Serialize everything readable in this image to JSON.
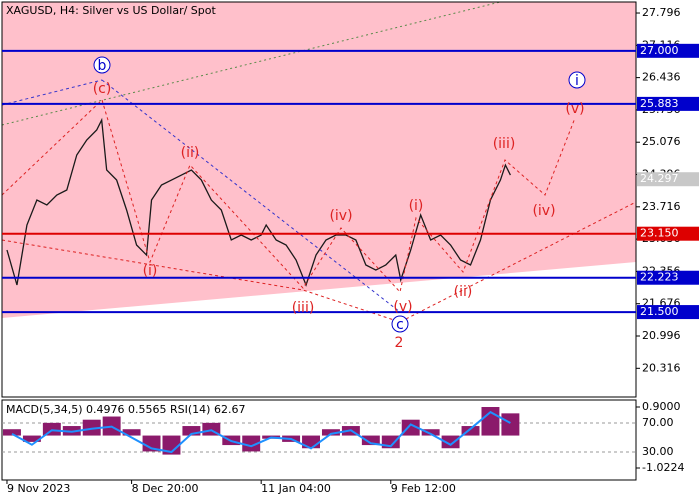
{
  "chart_data": [
    {
      "type": "line",
      "title": "XAGUSD, H4:  Silver vs US Dollar/ Spot",
      "x": [
        1,
        3,
        5,
        7,
        9,
        11,
        13,
        15,
        17,
        19,
        20,
        21,
        23,
        25,
        27,
        29,
        30,
        32,
        34,
        36,
        38,
        40,
        42,
        44,
        46,
        48,
        50,
        52,
        53,
        55,
        57,
        59,
        61,
        63,
        65,
        67,
        69,
        71,
        73,
        75,
        77,
        79,
        80,
        82,
        84,
        86,
        88,
        90,
        92,
        94,
        96,
        98,
        100,
        101,
        102
      ],
      "series": [
        {
          "color": "#1a1a1a",
          "values": [
            22.807,
            22.07,
            23.333,
            23.859,
            23.754,
            23.964,
            24.07,
            24.807,
            25.122,
            25.333,
            25.543,
            24.491,
            24.28,
            23.649,
            22.912,
            22.701,
            23.859,
            24.175,
            24.28,
            24.385,
            24.491,
            24.28,
            23.859,
            23.649,
            23.017,
            23.122,
            23.017,
            23.122,
            23.333,
            23.017,
            22.912,
            22.596,
            22.07,
            22.701,
            23.017,
            23.122,
            23.122,
            23.017,
            22.491,
            22.385,
            22.491,
            22.701,
            22.175,
            22.807,
            23.543,
            23.017,
            23.122,
            22.912,
            22.596,
            22.491,
            23.017,
            23.859,
            24.28,
            24.596,
            24.385
          ]
        }
      ],
      "xlim": [
        0,
        127.2
      ],
      "xticks": [
        {
          "value": 1,
          "label": "9 Nov 2023"
        },
        {
          "value": 26,
          "label": "8 Dec 20:00"
        },
        {
          "value": 52,
          "label": "11 Jan 04:00"
        },
        {
          "value": 78,
          "label": "9 Feb 12:00"
        }
      ],
      "ylim": [
        19.712,
        28.028
      ],
      "yticks": [
        27.796,
        27.116,
        26.436,
        25.756,
        25.076,
        24.396,
        23.716,
        23.036,
        22.356,
        21.676,
        20.996,
        20.316
      ],
      "levels": [
        {
          "value": 27,
          "label": "27.000",
          "color": "#0000cc"
        },
        {
          "value": 25.883,
          "label": "25.883",
          "color": "#0000cc"
        },
        {
          "value": 23.15,
          "label": "23.150",
          "color": "#dd0000"
        },
        {
          "value": 22.223,
          "label": "22.223",
          "color": "#0000cc"
        },
        {
          "value": 21.5,
          "label": "21.500",
          "color": "#0000cc"
        }
      ],
      "last_price": 24.297,
      "annotations": [
        {
          "text": "b",
          "color": "#0000cc",
          "circled": true
        },
        {
          "text": "(c)",
          "color": "#dd2222",
          "circled": false
        },
        {
          "text": "(ii)",
          "color": "#dd2222",
          "circled": false
        },
        {
          "text": "(i)",
          "color": "#dd2222",
          "circled": false
        },
        {
          "text": "(iv)",
          "color": "#dd2222",
          "circled": false
        },
        {
          "text": "(iii)",
          "color": "#dd2222",
          "circled": false
        },
        {
          "text": "(v)",
          "color": "#dd2222",
          "circled": false
        },
        {
          "text": "c",
          "color": "#0000cc",
          "circled": true
        },
        {
          "text": "2",
          "color": "#dd2222",
          "circled": false
        },
        {
          "text": "(i)",
          "color": "#dd2222",
          "circled": false
        },
        {
          "text": "(ii)",
          "color": "#dd2222",
          "circled": false
        },
        {
          "text": "(iii)",
          "color": "#dd2222",
          "circled": false
        },
        {
          "text": "(iv)",
          "color": "#dd2222",
          "circled": false
        },
        {
          "text": "(v)",
          "color": "#dd2222",
          "circled": false
        },
        {
          "text": "i",
          "color": "#0000cc",
          "circled": true
        }
      ]
    },
    {
      "type": "bar",
      "title": "MACD(5,34,5) 0.4976 0.5565 RSI(14) 62.67",
      "x": [
        2,
        6,
        10,
        14,
        18,
        22,
        26,
        30,
        34,
        38,
        42,
        46,
        50,
        54,
        58,
        62,
        66,
        70,
        74,
        78,
        82,
        86,
        90,
        94,
        98,
        102
      ],
      "series": [
        {
          "name": "MACD",
          "color": "#8b1a6b",
          "values": [
            0.2,
            -0.2,
            0.4,
            0.3,
            0.5,
            0.6,
            0.2,
            -0.5,
            -0.6,
            0.3,
            0.4,
            -0.3,
            -0.5,
            -0.1,
            -0.2,
            -0.4,
            0.2,
            0.3,
            -0.3,
            -0.4,
            0.5,
            0.2,
            -0.4,
            0.3,
            0.9,
            0.7
          ]
        },
        {
          "name": "RSI",
          "color": "#1e90ff",
          "axis": "y2",
          "values": [
            55,
            40,
            60,
            58,
            62,
            65,
            50,
            35,
            30,
            55,
            60,
            45,
            38,
            50,
            48,
            35,
            55,
            60,
            42,
            38,
            68,
            55,
            40,
            62,
            85,
            70
          ]
        }
      ],
      "xlim": [
        0,
        127.2
      ],
      "ylim": [
        -1.401,
        1.121
      ],
      "yticks": [
        {
          "value": 0.9,
          "label": "0.9000"
        },
        -1.0224
      ],
      "y2lim": [
        -8.6,
        101.7
      ],
      "y2ticks": [
        {
          "value": 70,
          "label": "70.00"
        },
        {
          "value": 30,
          "label": "30.00"
        }
      ]
    }
  ]
}
